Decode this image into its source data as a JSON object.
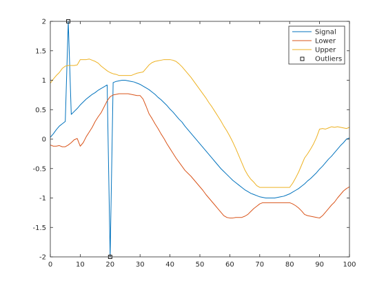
{
  "chart_data": {
    "type": "line",
    "title": "",
    "xlabel": "",
    "ylabel": "",
    "xlim": [
      0,
      100
    ],
    "ylim": [
      -2,
      2
    ],
    "x_ticks": [
      "0",
      "10",
      "20",
      "30",
      "40",
      "50",
      "60",
      "70",
      "80",
      "90",
      "100"
    ],
    "y_ticks": [
      "2",
      "1.5",
      "1",
      "0.5",
      "0",
      "-0.5",
      "-1",
      "-1.5",
      "-2"
    ],
    "grid": false,
    "legend_position": "top-right",
    "series": [
      {
        "name": "Signal",
        "color": "#0072BD",
        "x": [
          0,
          1,
          2,
          3,
          4,
          5,
          6,
          7,
          8,
          9,
          10,
          11,
          12,
          13,
          14,
          15,
          16,
          17,
          18,
          19,
          20,
          21,
          22,
          23,
          24,
          25,
          26,
          27,
          28,
          29,
          30,
          31,
          32,
          33,
          34,
          35,
          36,
          37,
          38,
          39,
          40,
          41,
          42,
          43,
          44,
          45,
          46,
          47,
          48,
          49,
          50,
          51,
          52,
          53,
          54,
          55,
          56,
          57,
          58,
          59,
          60,
          61,
          62,
          63,
          64,
          65,
          66,
          67,
          68,
          69,
          70,
          71,
          72,
          73,
          74,
          75,
          76,
          77,
          78,
          79,
          80,
          81,
          82,
          83,
          84,
          85,
          86,
          87,
          88,
          89,
          90,
          91,
          92,
          93,
          94,
          95,
          96,
          97,
          98,
          99,
          100
        ],
        "values": [
          0.03,
          0.09,
          0.16,
          0.22,
          0.26,
          0.3,
          2.0,
          0.42,
          0.47,
          0.52,
          0.58,
          0.63,
          0.68,
          0.72,
          0.76,
          0.79,
          0.83,
          0.86,
          0.89,
          0.92,
          -2.0,
          0.96,
          0.98,
          0.99,
          1.0,
          1.0,
          0.99,
          0.98,
          0.97,
          0.95,
          0.93,
          0.9,
          0.87,
          0.84,
          0.8,
          0.76,
          0.71,
          0.67,
          0.62,
          0.57,
          0.51,
          0.46,
          0.4,
          0.34,
          0.29,
          0.22,
          0.16,
          0.1,
          0.04,
          -0.02,
          -0.08,
          -0.14,
          -0.2,
          -0.26,
          -0.32,
          -0.38,
          -0.44,
          -0.5,
          -0.55,
          -0.6,
          -0.65,
          -0.7,
          -0.74,
          -0.78,
          -0.82,
          -0.86,
          -0.89,
          -0.92,
          -0.94,
          -0.96,
          -0.98,
          -0.99,
          -1.0,
          -1.0,
          -1.0,
          -1.0,
          -0.99,
          -0.98,
          -0.97,
          -0.95,
          -0.93,
          -0.9,
          -0.87,
          -0.84,
          -0.8,
          -0.76,
          -0.71,
          -0.67,
          -0.62,
          -0.57,
          -0.51,
          -0.46,
          -0.4,
          -0.34,
          -0.29,
          -0.23,
          -0.17,
          -0.11,
          -0.06,
          0.0,
          0.02
        ]
      },
      {
        "name": "Lower",
        "color": "#D95319",
        "x": [
          0,
          1,
          2,
          3,
          4,
          5,
          6,
          7,
          8,
          9,
          10,
          11,
          12,
          13,
          14,
          15,
          16,
          17,
          18,
          19,
          20,
          21,
          22,
          23,
          24,
          25,
          26,
          27,
          28,
          29,
          30,
          31,
          32,
          33,
          34,
          35,
          36,
          37,
          38,
          39,
          40,
          41,
          42,
          43,
          44,
          45,
          46,
          47,
          48,
          49,
          50,
          51,
          52,
          53,
          54,
          55,
          56,
          57,
          58,
          59,
          60,
          61,
          62,
          63,
          64,
          65,
          66,
          67,
          68,
          69,
          70,
          71,
          72,
          73,
          74,
          75,
          76,
          77,
          78,
          79,
          80,
          81,
          82,
          83,
          84,
          85,
          86,
          87,
          88,
          89,
          90,
          91,
          92,
          93,
          94,
          95,
          96,
          97,
          98,
          99,
          100
        ],
        "values": [
          -0.1,
          -0.12,
          -0.12,
          -0.11,
          -0.13,
          -0.13,
          -0.1,
          -0.06,
          -0.01,
          0.01,
          -0.12,
          -0.06,
          0.04,
          0.12,
          0.2,
          0.3,
          0.38,
          0.45,
          0.55,
          0.65,
          0.72,
          0.75,
          0.76,
          0.77,
          0.77,
          0.77,
          0.77,
          0.76,
          0.75,
          0.74,
          0.74,
          0.68,
          0.56,
          0.43,
          0.35,
          0.26,
          0.18,
          0.09,
          0.01,
          -0.08,
          -0.16,
          -0.24,
          -0.32,
          -0.39,
          -0.46,
          -0.53,
          -0.58,
          -0.63,
          -0.69,
          -0.75,
          -0.81,
          -0.87,
          -0.94,
          -1.0,
          -1.06,
          -1.12,
          -1.18,
          -1.24,
          -1.3,
          -1.33,
          -1.34,
          -1.34,
          -1.33,
          -1.33,
          -1.33,
          -1.31,
          -1.28,
          -1.23,
          -1.18,
          -1.14,
          -1.1,
          -1.08,
          -1.08,
          -1.08,
          -1.08,
          -1.08,
          -1.08,
          -1.08,
          -1.08,
          -1.08,
          -1.08,
          -1.1,
          -1.13,
          -1.17,
          -1.22,
          -1.28,
          -1.3,
          -1.31,
          -1.32,
          -1.33,
          -1.34,
          -1.3,
          -1.24,
          -1.18,
          -1.12,
          -1.07,
          -1.0,
          -0.94,
          -0.88,
          -0.84,
          -0.81
        ]
      },
      {
        "name": "Upper",
        "color": "#EDB120",
        "x": [
          0,
          1,
          2,
          3,
          4,
          5,
          6,
          7,
          8,
          9,
          10,
          11,
          12,
          13,
          14,
          15,
          16,
          17,
          18,
          19,
          20,
          21,
          22,
          23,
          24,
          25,
          26,
          27,
          28,
          29,
          30,
          31,
          32,
          33,
          34,
          35,
          36,
          37,
          38,
          39,
          40,
          41,
          42,
          43,
          44,
          45,
          46,
          47,
          48,
          49,
          50,
          51,
          52,
          53,
          54,
          55,
          56,
          57,
          58,
          59,
          60,
          61,
          62,
          63,
          64,
          65,
          66,
          67,
          68,
          69,
          70,
          71,
          72,
          73,
          74,
          75,
          76,
          77,
          78,
          79,
          80,
          81,
          82,
          83,
          84,
          85,
          86,
          87,
          88,
          89,
          90,
          91,
          92,
          93,
          94,
          95,
          96,
          97,
          98,
          99,
          100
        ],
        "values": [
          0.95,
          1.02,
          1.08,
          1.13,
          1.2,
          1.24,
          1.25,
          1.25,
          1.25,
          1.26,
          1.35,
          1.35,
          1.35,
          1.36,
          1.34,
          1.32,
          1.29,
          1.24,
          1.2,
          1.16,
          1.13,
          1.11,
          1.1,
          1.08,
          1.08,
          1.08,
          1.08,
          1.08,
          1.1,
          1.12,
          1.13,
          1.14,
          1.2,
          1.26,
          1.3,
          1.32,
          1.33,
          1.34,
          1.35,
          1.35,
          1.35,
          1.34,
          1.32,
          1.28,
          1.23,
          1.17,
          1.11,
          1.05,
          0.98,
          0.91,
          0.84,
          0.77,
          0.7,
          0.62,
          0.55,
          0.47,
          0.39,
          0.31,
          0.22,
          0.14,
          0.05,
          -0.05,
          -0.16,
          -0.28,
          -0.4,
          -0.52,
          -0.61,
          -0.68,
          -0.73,
          -0.79,
          -0.82,
          -0.82,
          -0.82,
          -0.82,
          -0.82,
          -0.82,
          -0.82,
          -0.82,
          -0.82,
          -0.82,
          -0.82,
          -0.75,
          -0.66,
          -0.56,
          -0.44,
          -0.32,
          -0.25,
          -0.17,
          -0.08,
          0.03,
          0.17,
          0.18,
          0.17,
          0.19,
          0.21,
          0.2,
          0.21,
          0.2,
          0.19,
          0.18,
          0.2
        ]
      }
    ],
    "outliers": {
      "name": "Outliers",
      "color": "#000000",
      "points": [
        {
          "x": 6,
          "y": 2.0
        },
        {
          "x": 20,
          "y": -2.0
        }
      ]
    }
  }
}
